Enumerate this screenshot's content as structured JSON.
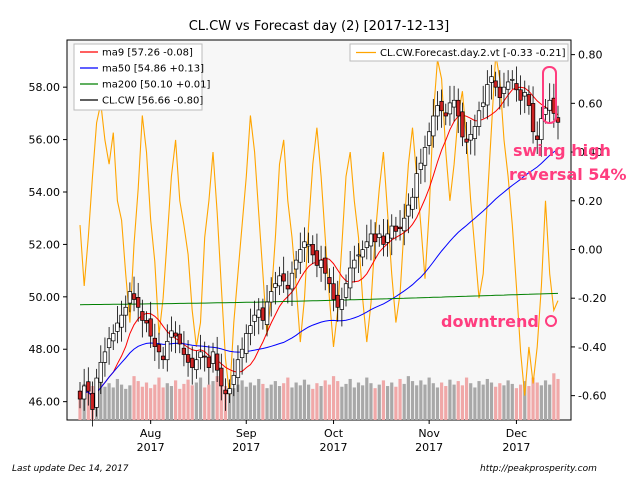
{
  "chart_data": {
    "type": "candlestick",
    "title": "CL.CW vs Forecast day (2)  [2017-12-13]",
    "left_axis": {
      "ylim": [
        45.3,
        59.8
      ],
      "ticks": [
        "46.00",
        "48.00",
        "50.00",
        "52.00",
        "54.00",
        "56.00",
        "58.00"
      ],
      "tick_values": [
        46,
        48,
        50,
        52,
        54,
        56,
        58
      ]
    },
    "right_axis": {
      "ylim": [
        -0.7,
        0.86
      ],
      "ticks": [
        "-0.60",
        "-0.40",
        "-0.20",
        "0.00",
        "0.20",
        "0.40",
        "0.60",
        "0.80"
      ],
      "tick_values": [
        -0.6,
        -0.4,
        -0.2,
        0,
        0.2,
        0.4,
        0.6,
        0.8
      ]
    },
    "x_ticks": [
      {
        "month": "Aug",
        "year": "2017",
        "index": 17
      },
      {
        "month": "Sep",
        "year": "2017",
        "index": 40
      },
      {
        "month": "Oct",
        "year": "2017",
        "index": 61
      },
      {
        "month": "Nov",
        "year": "2017",
        "index": 84
      },
      {
        "month": "Dec",
        "year": "2017",
        "index": 105
      }
    ],
    "n_days": 116,
    "close": [
      46.1,
      46.6,
      46.4,
      45.7,
      46.9,
      47.5,
      47.9,
      48.4,
      48.6,
      49.0,
      49.3,
      49.6,
      50.2,
      49.9,
      49.6,
      49.1,
      49.0,
      48.5,
      48.1,
      47.9,
      47.6,
      48.3,
      48.7,
      48.5,
      48.2,
      47.8,
      47.5,
      47.3,
      47.6,
      47.9,
      47.7,
      47.3,
      47.9,
      47.2,
      46.6,
      46.3,
      46.5,
      47.0,
      47.6,
      48.0,
      48.6,
      48.9,
      49.3,
      49.5,
      49.1,
      49.8,
      50.2,
      50.5,
      50.8,
      50.6,
      50.3,
      50.9,
      51.4,
      51.8,
      52.1,
      52.0,
      51.6,
      51.2,
      51.4,
      50.9,
      50.5,
      49.9,
      49.6,
      49.9,
      50.5,
      51.1,
      51.4,
      51.6,
      51.8,
      52.1,
      52.4,
      52.1,
      52.4,
      52.0,
      52.4,
      52.7,
      52.5,
      52.6,
      53.0,
      53.5,
      53.8,
      54.7,
      55.1,
      55.7,
      56.3,
      56.9,
      57.3,
      57.1,
      56.9,
      57.4,
      57.5,
      56.9,
      56.1,
      55.9,
      56.2,
      56.5,
      57.1,
      57.4,
      58.1,
      58.4,
      58.0,
      57.6,
      58.0,
      58.2,
      58.3,
      57.9,
      57.5,
      57.8,
      57.3,
      56.3,
      56.0,
      56.8,
      57.2,
      57.5,
      57.0,
      56.66
    ],
    "volume": [
      0.42,
      0.51,
      0.45,
      0.48,
      0.55,
      0.6,
      0.47,
      0.52,
      0.46,
      0.58,
      0.5,
      0.44,
      0.49,
      0.62,
      0.55,
      0.47,
      0.53,
      0.45,
      0.5,
      0.6,
      0.46,
      0.52,
      0.48,
      0.56,
      0.44,
      0.51,
      0.57,
      0.49,
      0.53,
      0.6,
      0.46,
      0.5,
      0.55,
      0.62,
      0.58,
      0.48,
      0.52,
      0.45,
      0.5,
      0.56,
      0.47,
      0.53,
      0.49,
      0.58,
      0.51,
      0.45,
      0.5,
      0.55,
      0.48,
      0.52,
      0.6,
      0.46,
      0.53,
      0.49,
      0.57,
      0.5,
      0.44,
      0.52,
      0.48,
      0.56,
      0.5,
      0.62,
      0.55,
      0.47,
      0.51,
      0.58,
      0.46,
      0.53,
      0.49,
      0.6,
      0.52,
      0.45,
      0.5,
      0.56,
      0.48,
      0.53,
      0.47,
      0.58,
      0.51,
      0.62,
      0.55,
      0.49,
      0.56,
      0.5,
      0.6,
      0.52,
      0.46,
      0.53,
      0.48,
      0.57,
      0.5,
      0.55,
      0.49,
      0.6,
      0.52,
      0.46,
      0.55,
      0.5,
      0.58,
      0.53,
      0.47,
      0.52,
      0.49,
      0.56,
      0.51,
      0.45,
      0.5,
      0.55,
      0.48,
      0.6,
      0.53,
      0.49,
      0.56,
      0.5,
      0.66,
      0.58
    ],
    "forecast_name": "CL.CW.Forecast.day.2.vt [-0.33 -0.21]",
    "forecast": [
      0.1,
      -0.15,
      0.05,
      0.3,
      0.52,
      0.6,
      0.45,
      0.35,
      0.48,
      0.2,
      0.12,
      -0.1,
      -0.3,
      0.02,
      0.25,
      0.55,
      0.4,
      0.12,
      -0.05,
      -0.35,
      -0.2,
      0.05,
      0.3,
      0.45,
      0.2,
      0.1,
      -0.02,
      -0.25,
      -0.4,
      -0.3,
      0.05,
      0.2,
      0.4,
      0.15,
      -0.15,
      -0.45,
      -0.6,
      -0.3,
      -0.1,
      0.1,
      0.3,
      0.55,
      0.4,
      0.15,
      -0.1,
      -0.35,
      -0.2,
      0.05,
      0.35,
      0.45,
      0.2,
      0.05,
      -0.15,
      -0.38,
      -0.2,
      0.1,
      0.35,
      0.5,
      0.3,
      0.05,
      -0.2,
      -0.4,
      -0.25,
      0.02,
      0.3,
      0.4,
      0.2,
      0.05,
      -0.2,
      -0.38,
      -0.22,
      0.05,
      0.25,
      0.4,
      0.15,
      -0.1,
      -0.3,
      -0.18,
      0.1,
      0.35,
      0.5,
      0.3,
      0.1,
      -0.12,
      0.15,
      0.55,
      0.78,
      0.7,
      0.4,
      0.2,
      0.35,
      0.55,
      0.65,
      0.45,
      0.2,
      0.0,
      -0.2,
      -0.1,
      0.2,
      0.5,
      0.8,
      0.7,
      0.45,
      0.3,
      0.1,
      -0.15,
      -0.42,
      -0.6,
      -0.4,
      -0.55,
      -0.4,
      -0.15,
      0.2,
      -0.1,
      -0.25,
      -0.21
    ],
    "legend": [
      {
        "label": "ma9 [57.26 -0.08]",
        "color": "#ff0000"
      },
      {
        "label": "ma50 [54.86 +0.13]",
        "color": "#0000ff"
      },
      {
        "label": "ma200 [50.10 +0.01]",
        "color": "#008000"
      },
      {
        "label": "CL.CW [56.66 -0.80]",
        "color": "#000000"
      }
    ],
    "colors": {
      "up": "#ffffff",
      "down": "#cc2222",
      "forecast": "#ffa500",
      "vol_up": "#a8a8a8",
      "vol_down": "#f0a8a8",
      "annotation": "#ff3d7f"
    },
    "annotations": {
      "swing_high_1": "swing high",
      "swing_high_2": "reversal 54%",
      "downtrend": "downtrend"
    },
    "grid": false
  },
  "footer": {
    "left": "Last update Dec 14, 2017",
    "right": "http://peakprosperity.com"
  }
}
